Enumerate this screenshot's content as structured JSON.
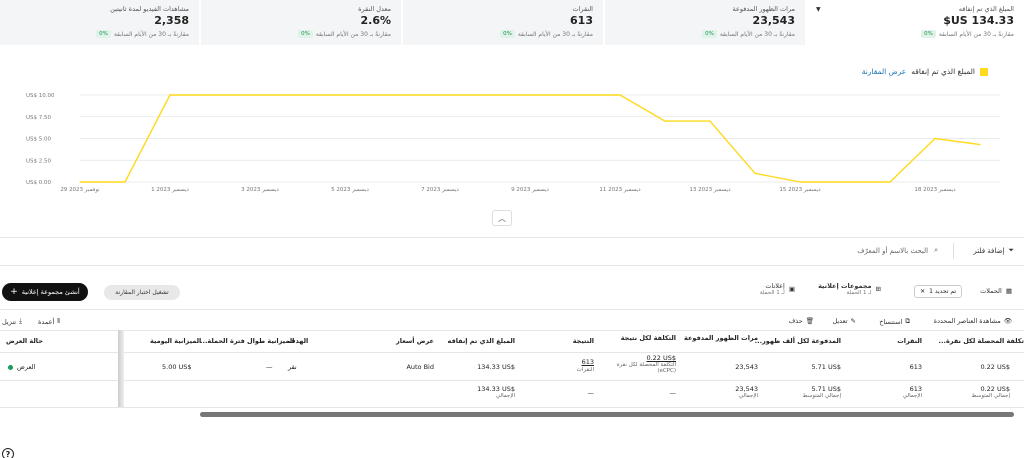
{
  "metrics": [
    {
      "label": "المبلغ الذي تم إنفاقه",
      "value": "$US 134.33",
      "badge": "0%",
      "compare": "مقارنةً بـ 30 من الأيام السابقة"
    },
    {
      "label": "مرات الظهور المدفوعة",
      "value": "23,543",
      "badge": "0%",
      "compare": "مقارنةً بـ 30 من الأيام السابقة"
    },
    {
      "label": "النقرات",
      "value": "613",
      "badge": "0%",
      "compare": "مقارنةً بـ 30 من الأيام السابقة"
    },
    {
      "label": "معدل النقرة",
      "value": "2.6%",
      "badge": "0%",
      "compare": "مقارنةً بـ 30 من الأيام السابقة"
    },
    {
      "label": "مشاهدات الفيديو لمدة ثانيتين",
      "value": "2,358",
      "badge": "0%",
      "compare": "مقارنةً بـ 30 من الأيام السابقة"
    }
  ],
  "chart_legend": {
    "series_label": "المبلغ الذي تم إنفاقه",
    "compare_link": "عرض المقارنة",
    "series_color": "#FFD91A"
  },
  "chart_data": {
    "type": "line",
    "x": [
      "29 نوفمبر 2023",
      "30",
      "1 ديسمبر 2023",
      "2",
      "3 ديسمبر 2023",
      "4",
      "5 ديسمبر 2023",
      "6",
      "7 ديسمبر 2023",
      "8",
      "9 ديسمبر 2023",
      "10",
      "11 ديسمبر 2023",
      "12",
      "13 ديسمبر 2023",
      "14",
      "15 ديسمبر 2023",
      "16",
      "17",
      "18 ديسمبر 2023",
      "19"
    ],
    "series": [
      {
        "values": [
          0,
          0,
          10,
          10,
          10,
          10,
          10,
          10,
          10,
          10,
          10,
          10,
          10,
          7,
          7,
          1,
          0,
          0,
          0,
          5,
          4.3
        ],
        "color": "#FFD91A"
      }
    ],
    "y_ticks": [
      "US$ 0.00",
      "US$ 2.50",
      "US$ 5.00",
      "US$ 7.50",
      "US$ 10.00"
    ],
    "x_tick_labels": [
      "29 نوفمبر 2023",
      "1 ديسمبر 2023",
      "3 ديسمبر 2023",
      "5 ديسمبر 2023",
      "7 ديسمبر 2023",
      "9 ديسمبر 2023",
      "11 ديسمبر 2023",
      "13 ديسمبر 2023",
      "15 ديسمبر 2023",
      "18 ديسمبر 2023"
    ],
    "x_tick_indices": [
      0,
      2,
      4,
      6,
      8,
      10,
      12,
      14,
      16,
      19
    ],
    "ylim": [
      0,
      10
    ],
    "grid": true
  },
  "filterbar": {
    "add_filter": "إضافة فلتر",
    "search_placeholder": "البحث بالاسم أو المعرّف"
  },
  "tabs": {
    "campaigns": "الحملات",
    "chip": "تم تحديد 1",
    "ad_groups": "مجموعات إعلانية",
    "ad_groups_sub": "لـ 1 الحملة",
    "ads": "إعلانات",
    "ads_sub": "لـ 1 الحملة"
  },
  "buttons": {
    "create": "أنشئ مجموعة إعلانية",
    "compare": "تشغيل اختبار المقارنة"
  },
  "toolbar": {
    "view_selected": "مشاهدة العناصر المحددة",
    "copy": "استنساخ",
    "edit": "تعديل",
    "delete": "حذف",
    "columns": "أعمدة",
    "download": "تنزيل"
  },
  "table": {
    "headers": {
      "cpc_result": "...تكلفة المحصلة لكل نقرة",
      "clicks": "النقرات",
      "cpm": "...المدفوعة لكل ألف ظهور",
      "impressions": "مرات الظهور المدفوعة",
      "cost_per_result": "التكلفة لكل نتيجة",
      "result": "النتيجة",
      "spend": "المبلغ الذي تم إنفاقه",
      "bid": "عرض أسعار",
      "goal": "الهدف",
      "lifetime_budget": "...الميزانية طوال فترة الحملة",
      "daily_budget": "الميزانية اليومية",
      "status": "حالة العرض"
    },
    "row": {
      "cpc_result": "0.22 US$",
      "clicks": "613",
      "cpm": "5.71 US$",
      "impressions": "23,543",
      "cost_per_result": "0.22 US$",
      "cost_per_result_sub": "التكلفة المحصلة لكل نقرة (eCPC)",
      "result": "613",
      "result_sub": "النقرات",
      "spend": "134.33 US$",
      "bid": "Auto Bid",
      "goal": "نقر",
      "lifetime_budget": "—",
      "daily_budget": "5.00 US$",
      "status": "العرض"
    },
    "total": {
      "cpc_result": "0.22 US$",
      "cpc_result_sub": "إجمالي المتوسط",
      "clicks": "613",
      "clicks_sub": "الإجمالي",
      "cpm": "5.71 US$",
      "cpm_sub": "إجمالي المتوسط",
      "impressions": "23,543",
      "impressions_sub": "الإجمالي",
      "cost_per_result": "—",
      "result": "—",
      "spend": "134.33 US$",
      "spend_sub": "الإجمالي"
    }
  },
  "help": "?"
}
